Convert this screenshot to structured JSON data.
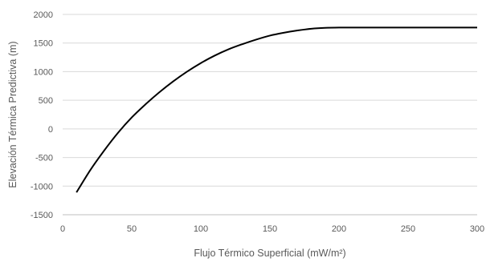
{
  "chart_data": {
    "type": "line",
    "title": "",
    "xlabel": "Flujo Térmico Superficial (mW/m²)",
    "ylabel": "Elevación Térmica Predictiva (m)",
    "xlim": [
      0,
      300
    ],
    "ylim": [
      -1500,
      2000
    ],
    "xticks": [
      "0",
      "50",
      "100",
      "150",
      "200",
      "250",
      "300"
    ],
    "yticks": [
      "2000",
      "1500",
      "1000",
      "500",
      "0",
      "-500",
      "-1000",
      "-1500"
    ],
    "grid": "horizontal",
    "legend": "none",
    "line_color": "#000000",
    "grid_color": "#d9d9d9",
    "series": [
      {
        "x": [
          10,
          20,
          30,
          40,
          50,
          60,
          70,
          80,
          90,
          100,
          110,
          120,
          130,
          140,
          150,
          160,
          170,
          180,
          190,
          200,
          210,
          220,
          230,
          240,
          250,
          260,
          270,
          280,
          290,
          300
        ],
        "values": [
          -1110,
          -720,
          -380,
          -70,
          200,
          430,
          640,
          830,
          1000,
          1150,
          1280,
          1390,
          1480,
          1560,
          1630,
          1680,
          1720,
          1750,
          1765,
          1770,
          1770,
          1770,
          1770,
          1770,
          1770,
          1770,
          1770,
          1770,
          1770,
          1770
        ]
      }
    ]
  }
}
